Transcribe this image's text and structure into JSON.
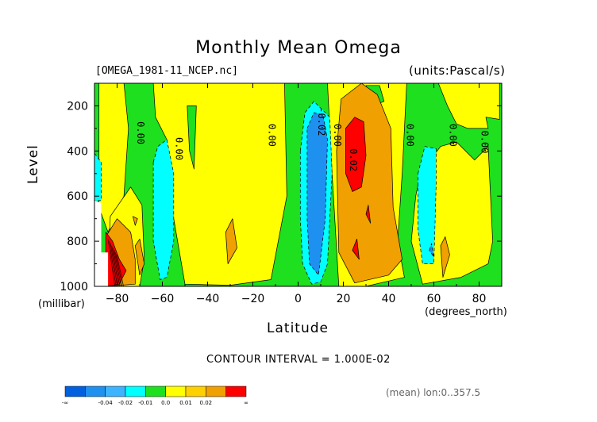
{
  "chart_data": {
    "type": "heatmap",
    "title": "Monthly Mean Omega",
    "source_file": "[OMEGA_1981-11_NCEP.nc]",
    "units": "(units:Pascal/s)",
    "xlabel": "Latitude",
    "x_units": "(degrees_north)",
    "ylabel": "Level",
    "y_units": "(millibar)",
    "xlim": [
      -90,
      90
    ],
    "ylim": [
      1000,
      100
    ],
    "xticks": [
      -80,
      -60,
      -40,
      -20,
      0,
      20,
      40,
      60,
      80
    ],
    "yticks": [
      200,
      400,
      600,
      800,
      1000
    ],
    "contour_interval_label": "CONTOUR INTERVAL = 1.000E-02",
    "averaging_label": "(mean) lon:0..357.5",
    "contour_labels": [
      {
        "text": "0.00",
        "lat": -71,
        "lev": 320
      },
      {
        "text": "0.00",
        "lat": -54,
        "lev": 390
      },
      {
        "text": "0.00",
        "lat": -13,
        "lev": 330
      },
      {
        "text": "-0.02",
        "lat": 9,
        "lev": 270
      },
      {
        "text": "0.00",
        "lat": 16,
        "lev": 330
      },
      {
        "text": "0.02",
        "lat": 23,
        "lev": 440
      },
      {
        "text": "0.00",
        "lat": 48,
        "lev": 330
      },
      {
        "text": "0.00",
        "lat": 67,
        "lev": 330
      },
      {
        "text": "0.00",
        "lat": 81,
        "lev": 360
      }
    ],
    "colorbar": {
      "colors": [
        "#0060e0",
        "#1e90f0",
        "#3cb4ff",
        "#00ffff",
        "#1ee01e",
        "#ffff00",
        "#ffd000",
        "#f0a000",
        "#ff0000"
      ],
      "labels": [
        "-∞",
        "-0.04",
        "-0.02",
        "-0.01",
        "0.0",
        "0.01",
        "0.02",
        "∞"
      ]
    },
    "regions": [
      {
        "color": "#1ee01e",
        "points": [
          [
            -90,
            100
          ],
          [
            90,
            100
          ],
          [
            90,
            1000
          ],
          [
            -90,
            1000
          ]
        ]
      },
      {
        "color": "#ffff00",
        "points": [
          [
            -88,
            100
          ],
          [
            -77,
            100
          ],
          [
            -75,
            300
          ],
          [
            -77,
            600
          ],
          [
            -84,
            760
          ],
          [
            -88,
            650
          ]
        ]
      },
      {
        "color": "#ffff00",
        "points": [
          [
            -64,
            100
          ],
          [
            -6,
            100
          ],
          [
            -5,
            600
          ],
          [
            -12,
            970
          ],
          [
            -30,
            995
          ],
          [
            -50,
            990
          ],
          [
            -55,
            700
          ],
          [
            -58,
            350
          ],
          [
            -63,
            250
          ]
        ]
      },
      {
        "color": "#ffff00",
        "points": [
          [
            -83,
            690
          ],
          [
            -74,
            560
          ],
          [
            -69,
            640
          ],
          [
            -68,
            880
          ],
          [
            -70,
            1000
          ],
          [
            -84,
            1000
          ]
        ]
      },
      {
        "color": "#ffff00",
        "points": [
          [
            13,
            100
          ],
          [
            48,
            100
          ],
          [
            46,
            500
          ],
          [
            44,
            800
          ],
          [
            47,
            960
          ],
          [
            30,
            1000
          ],
          [
            18,
            1000
          ],
          [
            15,
            500
          ]
        ]
      },
      {
        "color": "#ffff00",
        "points": [
          [
            62,
            100
          ],
          [
            89,
            100
          ],
          [
            89,
            260
          ],
          [
            83,
            250
          ],
          [
            84,
            300
          ],
          [
            75,
            300
          ],
          [
            70,
            280
          ],
          [
            66,
            200
          ]
        ]
      },
      {
        "color": "#ffff00",
        "points": [
          [
            52,
            600
          ],
          [
            54,
            500
          ],
          [
            63,
            380
          ],
          [
            70,
            360
          ],
          [
            78,
            440
          ],
          [
            84,
            380
          ],
          [
            86,
            800
          ],
          [
            84,
            900
          ],
          [
            72,
            960
          ],
          [
            55,
            990
          ],
          [
            50,
            800
          ]
        ]
      },
      {
        "color": "#1ee01e",
        "points": [
          [
            -49,
            200
          ],
          [
            -45,
            200
          ],
          [
            -46,
            480
          ],
          [
            -48,
            400
          ]
        ]
      },
      {
        "color": "#1ee01e",
        "points": [
          [
            30,
            110
          ],
          [
            36,
            110
          ],
          [
            38,
            180
          ],
          [
            33,
            200
          ]
        ]
      },
      {
        "color": "#f0a000",
        "points": [
          [
            19,
            170
          ],
          [
            28,
            100
          ],
          [
            35,
            150
          ],
          [
            41,
            300
          ],
          [
            42,
            650
          ],
          [
            46,
            880
          ],
          [
            40,
            950
          ],
          [
            25,
            985
          ],
          [
            18,
            850
          ],
          [
            17,
            400
          ]
        ]
      },
      {
        "color": "#f0a000",
        "points": [
          [
            -85,
            780
          ],
          [
            -80,
            700
          ],
          [
            -74,
            760
          ],
          [
            -72,
            880
          ],
          [
            -72,
            990
          ],
          [
            -85,
            1000
          ]
        ]
      },
      {
        "color": "#f0a000",
        "points": [
          [
            -72,
            820
          ],
          [
            -70,
            790
          ],
          [
            -68,
            900
          ],
          [
            -70,
            950
          ]
        ]
      },
      {
        "color": "#f0a000",
        "points": [
          [
            -32,
            760
          ],
          [
            -29,
            700
          ],
          [
            -27,
            830
          ],
          [
            -31,
            900
          ]
        ]
      },
      {
        "color": "#f0a000",
        "points": [
          [
            63,
            820
          ],
          [
            65,
            780
          ],
          [
            67,
            860
          ],
          [
            64,
            960
          ]
        ]
      },
      {
        "color": "#f0a000",
        "points": [
          [
            -73,
            690
          ],
          [
            -71,
            700
          ],
          [
            -72,
            730
          ]
        ]
      },
      {
        "color": "#ff0000",
        "points": [
          [
            21,
            300
          ],
          [
            25,
            250
          ],
          [
            29,
            270
          ],
          [
            30,
            420
          ],
          [
            28,
            560
          ],
          [
            24,
            580
          ],
          [
            21,
            500
          ]
        ]
      },
      {
        "color": "#ff0000",
        "points": [
          [
            30,
            680
          ],
          [
            31,
            640
          ],
          [
            32,
            720
          ]
        ]
      },
      {
        "color": "#ff0000",
        "points": [
          [
            24,
            840
          ],
          [
            26,
            790
          ],
          [
            27,
            880
          ]
        ]
      },
      {
        "color": "#ff0000",
        "points": [
          [
            -85,
            760
          ],
          [
            -82,
            800
          ],
          [
            -79,
            880
          ],
          [
            -76,
            930
          ],
          [
            -79,
            990
          ],
          [
            -85,
            1000
          ]
        ]
      },
      {
        "color": "#00ffff",
        "points": [
          [
            -64,
            450
          ],
          [
            -62,
            380
          ],
          [
            -58,
            350
          ],
          [
            -55,
            500
          ],
          [
            -55,
            800
          ],
          [
            -58,
            960
          ],
          [
            -61,
            970
          ],
          [
            -64,
            800
          ]
        ]
      },
      {
        "color": "#00ffff",
        "points": [
          [
            1,
            400
          ],
          [
            3,
            230
          ],
          [
            7,
            180
          ],
          [
            14,
            250
          ],
          [
            15,
            500
          ],
          [
            13,
            900
          ],
          [
            10,
            980
          ],
          [
            6,
            990
          ],
          [
            2,
            900
          ],
          [
            1,
            700
          ]
        ]
      },
      {
        "color": "#00ffff",
        "points": [
          [
            53,
            500
          ],
          [
            56,
            380
          ],
          [
            61,
            390
          ],
          [
            61,
            550
          ],
          [
            60,
            900
          ],
          [
            55,
            900
          ],
          [
            53,
            750
          ]
        ]
      },
      {
        "color": "#00ffff",
        "points": [
          [
            -90,
            410
          ],
          [
            -87,
            450
          ],
          [
            -87,
            620
          ],
          [
            -90,
            620
          ]
        ]
      },
      {
        "color": "#1e90f0",
        "points": [
          [
            4,
            300
          ],
          [
            7,
            230
          ],
          [
            11,
            240
          ],
          [
            13,
            350
          ],
          [
            12,
            700
          ],
          [
            9,
            950
          ],
          [
            5,
            900
          ],
          [
            4,
            700
          ]
        ]
      },
      {
        "color": "#1e90f0",
        "points": [
          [
            58,
            840
          ],
          [
            59,
            810
          ],
          [
            60,
            870
          ]
        ]
      },
      {
        "color": "#ffffff",
        "points": [
          [
            -90,
            620
          ],
          [
            -87,
            630
          ],
          [
            -87,
            850
          ],
          [
            -84,
            850
          ],
          [
            -84,
            1000
          ],
          [
            -90,
            1000
          ]
        ]
      }
    ]
  }
}
